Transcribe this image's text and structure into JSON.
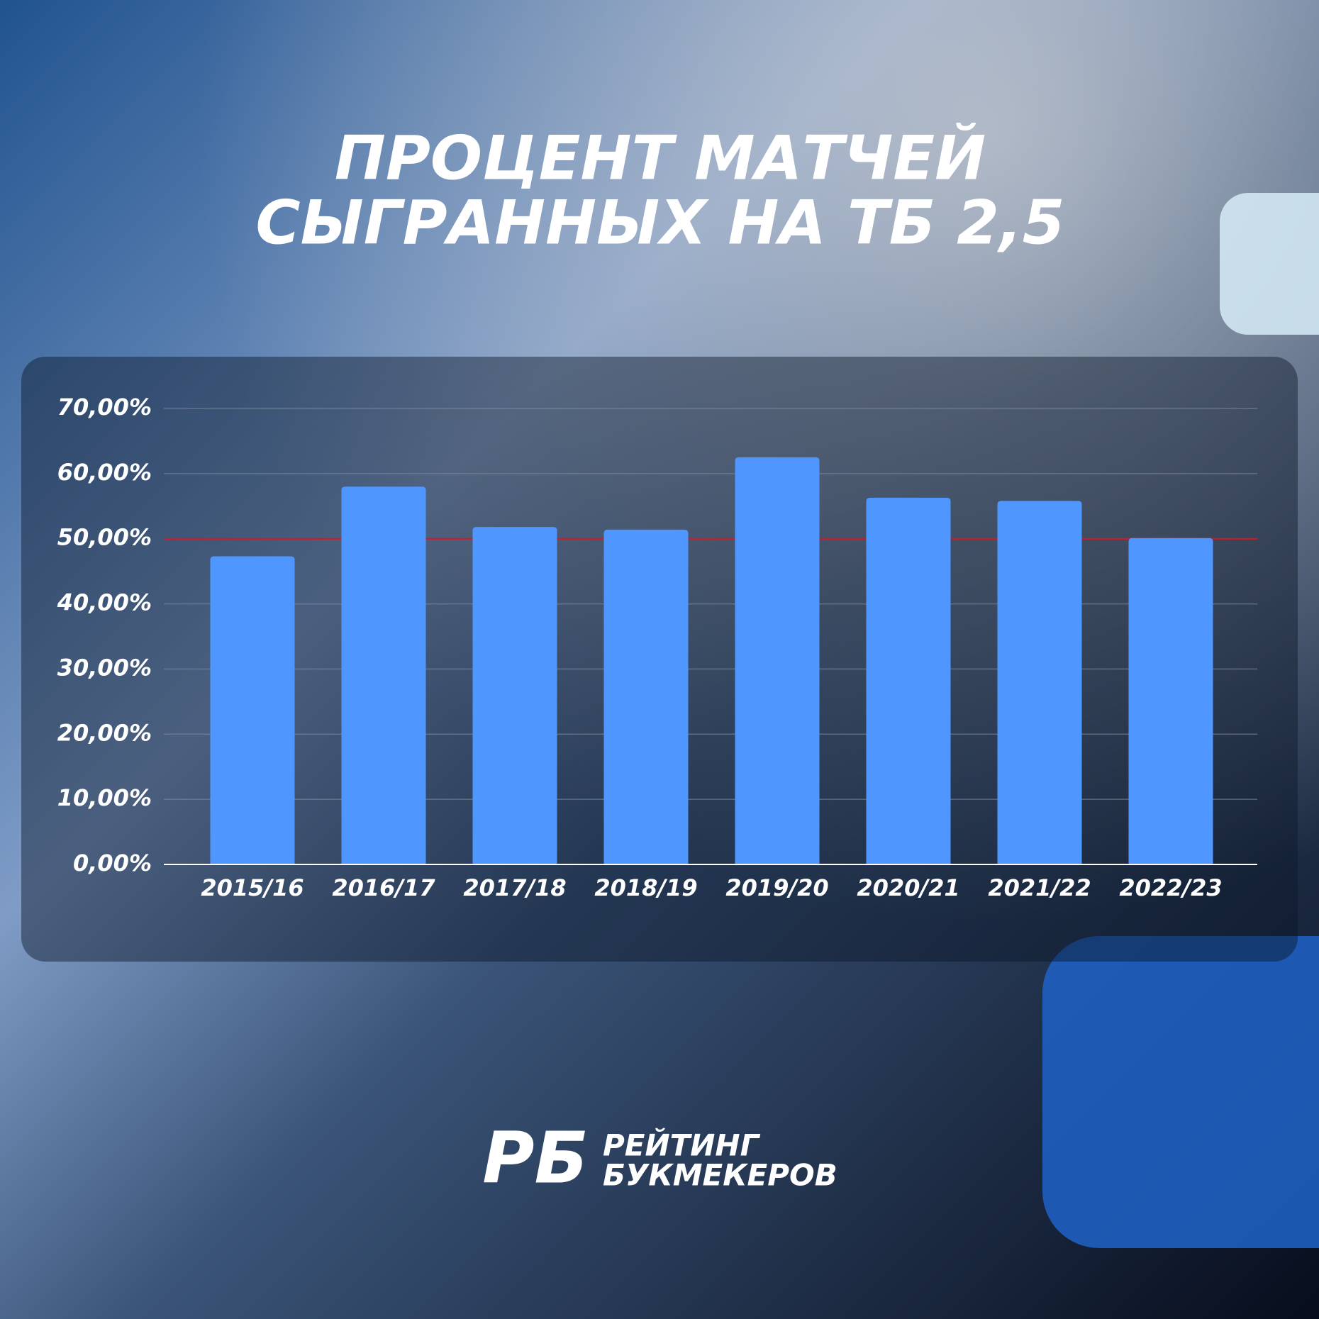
{
  "chart_data": {
    "type": "bar",
    "title": [
      "ПРОЦЕНТ МАТЧЕЙ",
      "СЫГРАННЫХ НА ТБ 2,5"
    ],
    "categories": [
      "2015/16",
      "2016/17",
      "2017/18",
      "2018/19",
      "2019/20",
      "2020/21",
      "2021/22",
      "2022/23"
    ],
    "values": [
      47.3,
      58.0,
      51.8,
      51.4,
      62.5,
      56.3,
      55.8,
      50.1
    ],
    "color": "#4f97ff",
    "ylim": [
      0,
      70
    ],
    "yticks": [
      {
        "value": 0,
        "label": "0,00%"
      },
      {
        "value": 10,
        "label": "10,00%"
      },
      {
        "value": 20,
        "label": "20,00%"
      },
      {
        "value": 30,
        "label": "30,00%"
      },
      {
        "value": 40,
        "label": "40,00%"
      },
      {
        "value": 50,
        "label": "50,00%"
      },
      {
        "value": 60,
        "label": "60,00%"
      },
      {
        "value": 70,
        "label": "70,00%"
      }
    ],
    "grid": true,
    "reference_line": {
      "value": 50,
      "color": "#e0141e"
    }
  },
  "logo": {
    "mark": "РБ",
    "lines": [
      "РЕЙТИНГ",
      "БУКМЕКЕРОВ"
    ]
  }
}
